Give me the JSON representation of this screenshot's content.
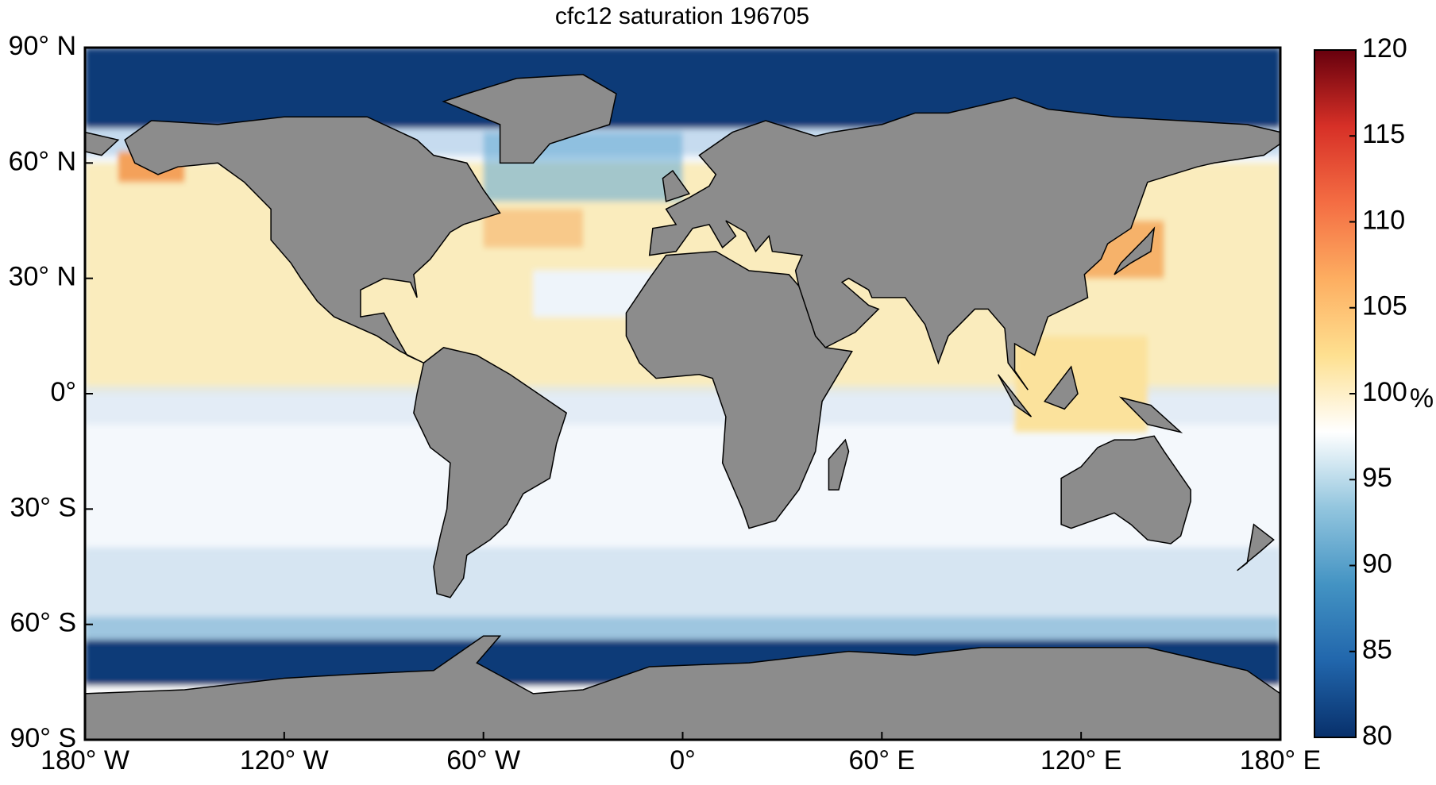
{
  "map": {
    "title": "cfc12 saturation 196705",
    "xlim": [
      -180,
      180
    ],
    "ylim": [
      -90,
      90
    ],
    "xticks": [
      {
        "value": -180,
        "label": "180° W"
      },
      {
        "value": -120,
        "label": "120° W"
      },
      {
        "value": -60,
        "label": "60° W"
      },
      {
        "value": 0,
        "label": "0°"
      },
      {
        "value": 60,
        "label": "60° E"
      },
      {
        "value": 120,
        "label": "120° E"
      },
      {
        "value": 180,
        "label": "180° E"
      }
    ],
    "yticks": [
      {
        "value": 90,
        "label": "90° N"
      },
      {
        "value": 60,
        "label": "60° N"
      },
      {
        "value": 30,
        "label": "30° N"
      },
      {
        "value": 0,
        "label": "0°"
      },
      {
        "value": -30,
        "label": "30° S"
      },
      {
        "value": -60,
        "label": "60° S"
      },
      {
        "value": -90,
        "label": "90° S"
      }
    ]
  },
  "colorbar": {
    "label": "%",
    "lim": [
      80,
      120
    ],
    "ticks": [
      80,
      85,
      90,
      95,
      100,
      105,
      110,
      115,
      120
    ],
    "colors": [
      "#08306b",
      "#2166ac",
      "#4393c3",
      "#92c5de",
      "#ffffff",
      "#fee090",
      "#fdae61",
      "#f46d43",
      "#d73027",
      "#67000d"
    ]
  }
}
